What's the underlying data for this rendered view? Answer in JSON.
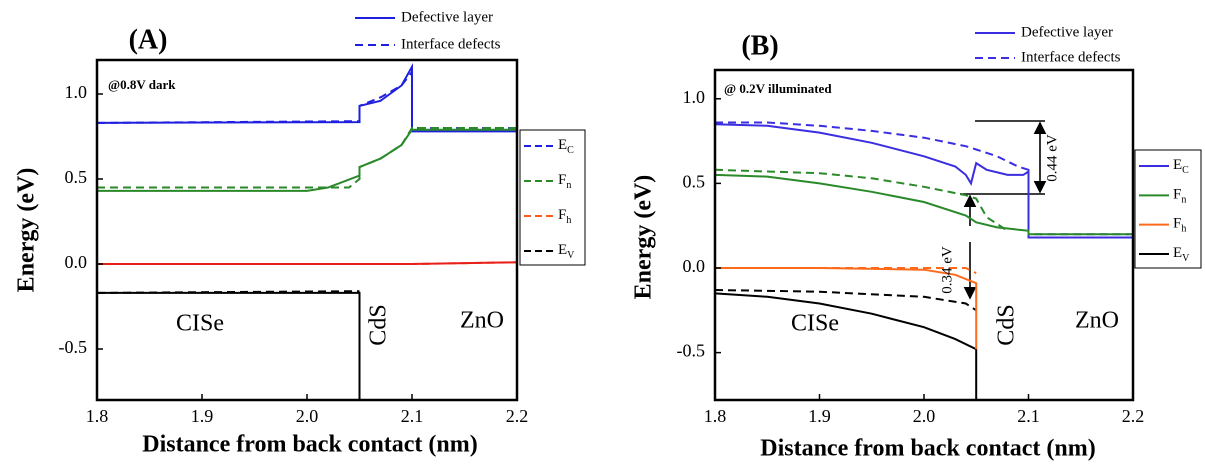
{
  "chart_data": [
    {
      "type": "line",
      "panel_label": "(A)",
      "annotation": "@0.8V dark",
      "x_label": "Distance from back contact (nm)",
      "y_label": "Energy (eV)",
      "xlim": [
        1.8,
        2.2
      ],
      "ylim": [
        -0.8,
        1.2
      ],
      "xticks": [
        1.8,
        1.9,
        {
          "value": 2,
          "label": "2.0"
        },
        2.1,
        2.2
      ],
      "yticks": [
        -0.5,
        {
          "value": 0,
          "label": "0.0"
        },
        0.5,
        {
          "value": 1,
          "label": "1.0"
        }
      ],
      "regions": [
        "CISe",
        "CdS",
        "ZnO"
      ],
      "styles": [
        {
          "label": "Defective layer",
          "dashed": false
        },
        {
          "label": "Interface defects",
          "dashed": true
        }
      ],
      "bands": [
        {
          "name": "E",
          "sub": "C"
        },
        {
          "name": "F",
          "sub": "n"
        },
        {
          "name": "F",
          "sub": "h"
        },
        {
          "name": "E",
          "sub": "V"
        }
      ],
      "band_legend_dashed": true,
      "series": [
        {
          "band": 0,
          "style": 0,
          "color": "#1f1fe0",
          "x": [
            1.8,
            2.05,
            2.05,
            2.07,
            2.09,
            2.1,
            2.1,
            2.2
          ],
          "values": [
            0.83,
            0.835,
            0.93,
            0.96,
            1.05,
            1.16,
            0.78,
            0.78
          ]
        },
        {
          "band": 0,
          "style": 1,
          "color": "#1f1fe0",
          "x": [
            1.8,
            2.05,
            2.05,
            2.07,
            2.09,
            2.1,
            2.1,
            2.2
          ],
          "values": [
            0.83,
            0.84,
            0.93,
            0.98,
            1.05,
            1.13,
            0.8,
            0.8
          ]
        },
        {
          "band": 1,
          "style": 0,
          "color": "#2a8a2a",
          "x": [
            1.8,
            2.0,
            2.02,
            2.05,
            2.05,
            2.07,
            2.09,
            2.1,
            2.2
          ],
          "values": [
            0.43,
            0.43,
            0.45,
            0.52,
            0.57,
            0.62,
            0.7,
            0.79,
            0.79
          ]
        },
        {
          "band": 1,
          "style": 1,
          "color": "#2a8a2a",
          "x": [
            1.8,
            2.04,
            2.05,
            2.05,
            2.07,
            2.09,
            2.1,
            2.2
          ],
          "values": [
            0.45,
            0.45,
            0.5,
            0.57,
            0.62,
            0.7,
            0.8,
            0.8
          ]
        },
        {
          "band": 2,
          "style": 1,
          "color": "#ff5a1f",
          "x": [
            1.8,
            2.1,
            2.2
          ],
          "values": [
            0.0,
            0.0,
            0.01
          ]
        },
        {
          "band": 2,
          "style": 0,
          "color": "#e8201c",
          "x": [
            1.8,
            2.1,
            2.2
          ],
          "values": [
            0.0,
            0.0,
            0.01
          ]
        },
        {
          "band": 3,
          "style": 1,
          "color": "#000000",
          "x": [
            1.8,
            2.05
          ],
          "values": [
            -0.17,
            -0.16
          ]
        },
        {
          "band": 3,
          "style": 0,
          "color": "#000000",
          "x": [
            1.8,
            2.05,
            2.05
          ],
          "values": [
            -0.17,
            -0.17,
            -0.8
          ]
        }
      ]
    },
    {
      "type": "line",
      "panel_label": "(B)",
      "annotation": "@ 0.2V illuminated",
      "x_label": "Distance from back contact (nm)",
      "y_label": "Energy (eV)",
      "xlim": [
        1.8,
        2.2
      ],
      "ylim": [
        -0.78,
        1.17
      ],
      "xticks": [
        1.8,
        1.9,
        {
          "value": 2,
          "label": "2.0"
        },
        2.1,
        2.2
      ],
      "yticks": [
        -0.5,
        {
          "value": 0,
          "label": "0.0"
        },
        0.5,
        {
          "value": 1,
          "label": "1.0"
        }
      ],
      "regions": [
        "CISe",
        "CdS",
        "ZnO"
      ],
      "gap_labels": [
        "0.34 eV",
        "0.44 eV"
      ],
      "styles": [
        {
          "label": "Defective layer",
          "dashed": false
        },
        {
          "label": "Interface defects",
          "dashed": true
        }
      ],
      "bands": [
        {
          "name": "E",
          "sub": "C"
        },
        {
          "name": "F",
          "sub": "n"
        },
        {
          "name": "F",
          "sub": "h"
        },
        {
          "name": "E",
          "sub": "V"
        }
      ],
      "band_legend_dashed": false,
      "series": [
        {
          "band": 0,
          "style": 0,
          "color": "#3b2ee0",
          "x": [
            1.8,
            1.85,
            1.9,
            1.95,
            2.0,
            2.03,
            2.04,
            2.045,
            2.05,
            2.06,
            2.08,
            2.095,
            2.1,
            2.1,
            2.2
          ],
          "values": [
            0.85,
            0.84,
            0.8,
            0.74,
            0.66,
            0.6,
            0.55,
            0.5,
            0.62,
            0.58,
            0.55,
            0.55,
            0.57,
            0.18,
            0.18
          ]
        },
        {
          "band": 0,
          "style": 1,
          "color": "#3b2ee0",
          "x": [
            1.8,
            1.85,
            1.9,
            1.95,
            2.0,
            2.04,
            2.05,
            2.07,
            2.09,
            2.1,
            2.1,
            2.2
          ],
          "values": [
            0.86,
            0.86,
            0.84,
            0.81,
            0.77,
            0.72,
            0.7,
            0.66,
            0.6,
            0.58,
            0.2,
            0.2
          ]
        },
        {
          "band": 1,
          "style": 0,
          "color": "#2a8a2a",
          "x": [
            1.8,
            1.85,
            1.9,
            1.95,
            2.0,
            2.04,
            2.05,
            2.07,
            2.1,
            2.1,
            2.2
          ],
          "values": [
            0.55,
            0.54,
            0.5,
            0.45,
            0.39,
            0.31,
            0.27,
            0.24,
            0.22,
            0.2,
            0.2
          ]
        },
        {
          "band": 1,
          "style": 1,
          "color": "#2a8a2a",
          "x": [
            1.8,
            1.9,
            1.95,
            2.0,
            2.04,
            2.05,
            2.06,
            2.08
          ],
          "values": [
            0.58,
            0.56,
            0.53,
            0.48,
            0.43,
            0.41,
            0.3,
            0.22
          ]
        },
        {
          "band": 3,
          "style": 0,
          "color": "#000000",
          "x": [
            1.8,
            1.85,
            1.9,
            1.95,
            2.0,
            2.03,
            2.05,
            2.05
          ],
          "values": [
            -0.15,
            -0.17,
            -0.21,
            -0.27,
            -0.35,
            -0.42,
            -0.48,
            -0.78
          ]
        },
        {
          "band": 3,
          "style": 1,
          "color": "#000000",
          "x": [
            1.8,
            1.9,
            2.0,
            2.04,
            2.05
          ],
          "values": [
            -0.13,
            -0.14,
            -0.17,
            -0.21,
            -0.25
          ]
        },
        {
          "band": 2,
          "style": 0,
          "color": "#ff6a1a",
          "x": [
            1.8,
            1.9,
            2.0,
            2.03,
            2.05,
            2.05
          ],
          "values": [
            0.0,
            0.0,
            -0.01,
            -0.04,
            -0.09,
            -0.48
          ]
        },
        {
          "band": 2,
          "style": 1,
          "color": "#ff6a1a",
          "x": [
            1.8,
            2.0,
            2.04,
            2.05
          ],
          "values": [
            0.0,
            0.0,
            0.0,
            -0.03
          ]
        }
      ]
    }
  ]
}
